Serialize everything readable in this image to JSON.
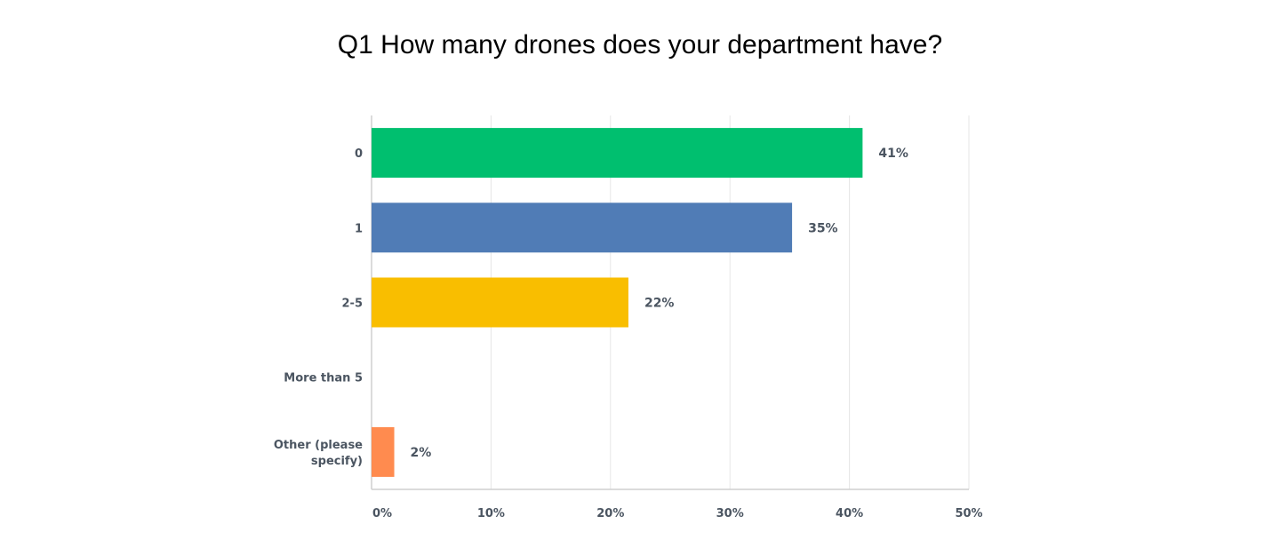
{
  "chart_data": {
    "type": "bar",
    "orientation": "horizontal",
    "title": "Q1 How many drones does your department have?",
    "categories": [
      "0",
      "1",
      "2-5",
      "More than 5",
      "Other (please specify)"
    ],
    "category_lines": [
      [
        "0"
      ],
      [
        "1"
      ],
      [
        "2-5"
      ],
      [
        "More than 5"
      ],
      [
        "Other (please",
        "specify)"
      ]
    ],
    "values": [
      41.1,
      35.2,
      21.5,
      0,
      1.9
    ],
    "data_labels": [
      "41%",
      "35%",
      "22%",
      "",
      "2%"
    ],
    "colors": [
      "#00BF6F",
      "#507CB6",
      "#F9BE00",
      "#6BC8CD",
      "#FF8B4F"
    ],
    "xlim": [
      0,
      50
    ],
    "xticks": [
      0,
      10,
      20,
      30,
      40,
      50
    ],
    "xtick_labels": [
      "0%",
      "10%",
      "20%",
      "30%",
      "40%",
      "50%"
    ],
    "xlabel": "",
    "ylabel": "",
    "grid": "vertical"
  }
}
